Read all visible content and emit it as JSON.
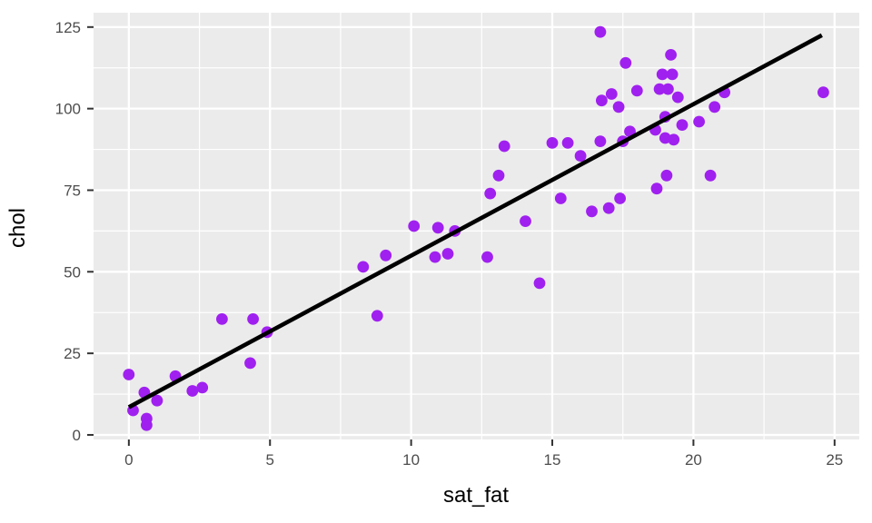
{
  "chart_data": {
    "type": "scatter",
    "title": "",
    "xlabel": "sat_fat",
    "ylabel": "chol",
    "x_ticks": [
      0,
      5,
      10,
      15,
      20,
      25
    ],
    "y_ticks": [
      0,
      25,
      50,
      75,
      100,
      125
    ],
    "x_minor_gridlines": [
      2.5,
      7.5,
      12.5,
      17.5,
      22.5
    ],
    "y_minor_gridlines": [
      12.5,
      37.5,
      62.5,
      87.5,
      112.5
    ],
    "xlim": [
      -1.25,
      25.875
    ],
    "ylim": [
      -1.4,
      129.4
    ],
    "grid": true,
    "legend_position": "none",
    "style": "ggplot2-gray",
    "panel_background": "#ebebeb",
    "gridline_color": "#ffffff",
    "point_color": "#a020f0",
    "line_color": "#000000",
    "tick_label_color": "#4d4d4d",
    "axis_title_color": "#000000",
    "tick_mark_color": "#333333",
    "regression_line": {
      "x0": 0,
      "y0": 8.5,
      "x1": 24.55,
      "y1": 122.5
    },
    "points": [
      [
        0.0,
        18.5
      ],
      [
        0.15,
        7.5
      ],
      [
        0.55,
        13
      ],
      [
        0.63,
        5
      ],
      [
        0.63,
        3
      ],
      [
        1.0,
        10.5
      ],
      [
        1.65,
        18
      ],
      [
        2.25,
        13.5
      ],
      [
        2.6,
        14.5
      ],
      [
        3.3,
        35.5
      ],
      [
        4.3,
        22
      ],
      [
        4.4,
        35.5
      ],
      [
        4.9,
        31.5
      ],
      [
        8.3,
        51.5
      ],
      [
        8.8,
        36.5
      ],
      [
        9.1,
        55
      ],
      [
        10.1,
        64
      ],
      [
        10.85,
        54.5
      ],
      [
        10.95,
        63.5
      ],
      [
        11.3,
        55.5
      ],
      [
        11.55,
        62.5
      ],
      [
        12.7,
        54.5
      ],
      [
        12.8,
        74
      ],
      [
        13.1,
        79.5
      ],
      [
        13.3,
        88.5
      ],
      [
        14.05,
        65.5
      ],
      [
        14.55,
        46.5
      ],
      [
        15.0,
        89.5
      ],
      [
        15.3,
        72.5
      ],
      [
        15.55,
        89.5
      ],
      [
        16.0,
        85.5
      ],
      [
        16.4,
        68.5
      ],
      [
        16.7,
        90
      ],
      [
        16.7,
        123.5
      ],
      [
        16.75,
        102.5
      ],
      [
        17.0,
        69.5
      ],
      [
        17.1,
        104.5
      ],
      [
        17.35,
        100.5
      ],
      [
        17.4,
        72.5
      ],
      [
        17.5,
        90
      ],
      [
        17.6,
        114
      ],
      [
        17.75,
        93
      ],
      [
        18.0,
        105.5
      ],
      [
        18.65,
        93.5
      ],
      [
        18.7,
        75.5
      ],
      [
        18.8,
        106
      ],
      [
        18.9,
        110.5
      ],
      [
        19.0,
        91
      ],
      [
        19.0,
        97.5
      ],
      [
        19.05,
        79.5
      ],
      [
        19.1,
        106
      ],
      [
        19.2,
        116.5
      ],
      [
        19.25,
        110.5
      ],
      [
        19.3,
        90.5
      ],
      [
        19.45,
        103.5
      ],
      [
        19.6,
        95
      ],
      [
        20.2,
        96
      ],
      [
        20.6,
        79.5
      ],
      [
        20.75,
        100.5
      ],
      [
        21.1,
        105
      ],
      [
        24.6,
        105
      ]
    ]
  }
}
